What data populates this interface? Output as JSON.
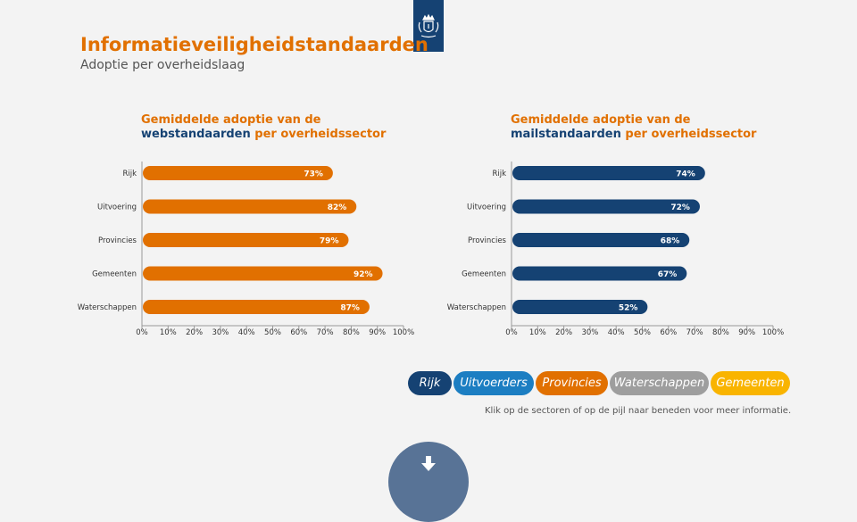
{
  "header": {
    "title": "Informatieveiligheidstandaarden",
    "subtitle": "Adoptie per overheidslaag"
  },
  "colors": {
    "orange": "#e17000",
    "blue": "#154273",
    "axis": "#999999"
  },
  "chart_data": [
    {
      "type": "bar",
      "orientation": "horizontal",
      "title_parts": [
        "Gemiddelde adoptie van de",
        "webstandaarden",
        "per overheidssector"
      ],
      "categories": [
        "Rijk",
        "Uitvoering",
        "Provincies",
        "Gemeenten",
        "Waterschappen"
      ],
      "values": [
        73,
        82,
        79,
        92,
        87
      ],
      "value_labels": [
        "73%",
        "82%",
        "79%",
        "92%",
        "87%"
      ],
      "xlim": [
        0,
        100
      ],
      "ticks": [
        "0%",
        "10%",
        "20%",
        "30%",
        "40%",
        "50%",
        "60%",
        "70%",
        "80%",
        "90%",
        "100%"
      ],
      "color": "#e17000"
    },
    {
      "type": "bar",
      "orientation": "horizontal",
      "title_parts": [
        "Gemiddelde adoptie van de",
        "mailstandaarden",
        "per overheidssector"
      ],
      "categories": [
        "Rijk",
        "Uitvoering",
        "Provincies",
        "Gemeenten",
        "Waterschappen"
      ],
      "values": [
        74,
        72,
        68,
        67,
        52
      ],
      "value_labels": [
        "74%",
        "72%",
        "68%",
        "67%",
        "52%"
      ],
      "xlim": [
        0,
        100
      ],
      "ticks": [
        "0%",
        "10%",
        "20%",
        "30%",
        "40%",
        "50%",
        "60%",
        "70%",
        "80%",
        "90%",
        "100%"
      ],
      "color": "#154273"
    }
  ],
  "legend": [
    {
      "label": "Rijk",
      "color": "#154273"
    },
    {
      "label": "Uitvoerders",
      "color": "#1c7ec2"
    },
    {
      "label": "Provincies",
      "color": "#e17000"
    },
    {
      "label": "Waterschappen",
      "color": "#9e9e9e"
    },
    {
      "label": "Gemeenten",
      "color": "#f9b400"
    }
  ],
  "hint": "Klik op de sectoren of op de pijl naar beneden voor meer informatie.",
  "icons": {
    "logo": "rijksoverheid-logo-icon",
    "arrow": "arrow-down-icon"
  }
}
